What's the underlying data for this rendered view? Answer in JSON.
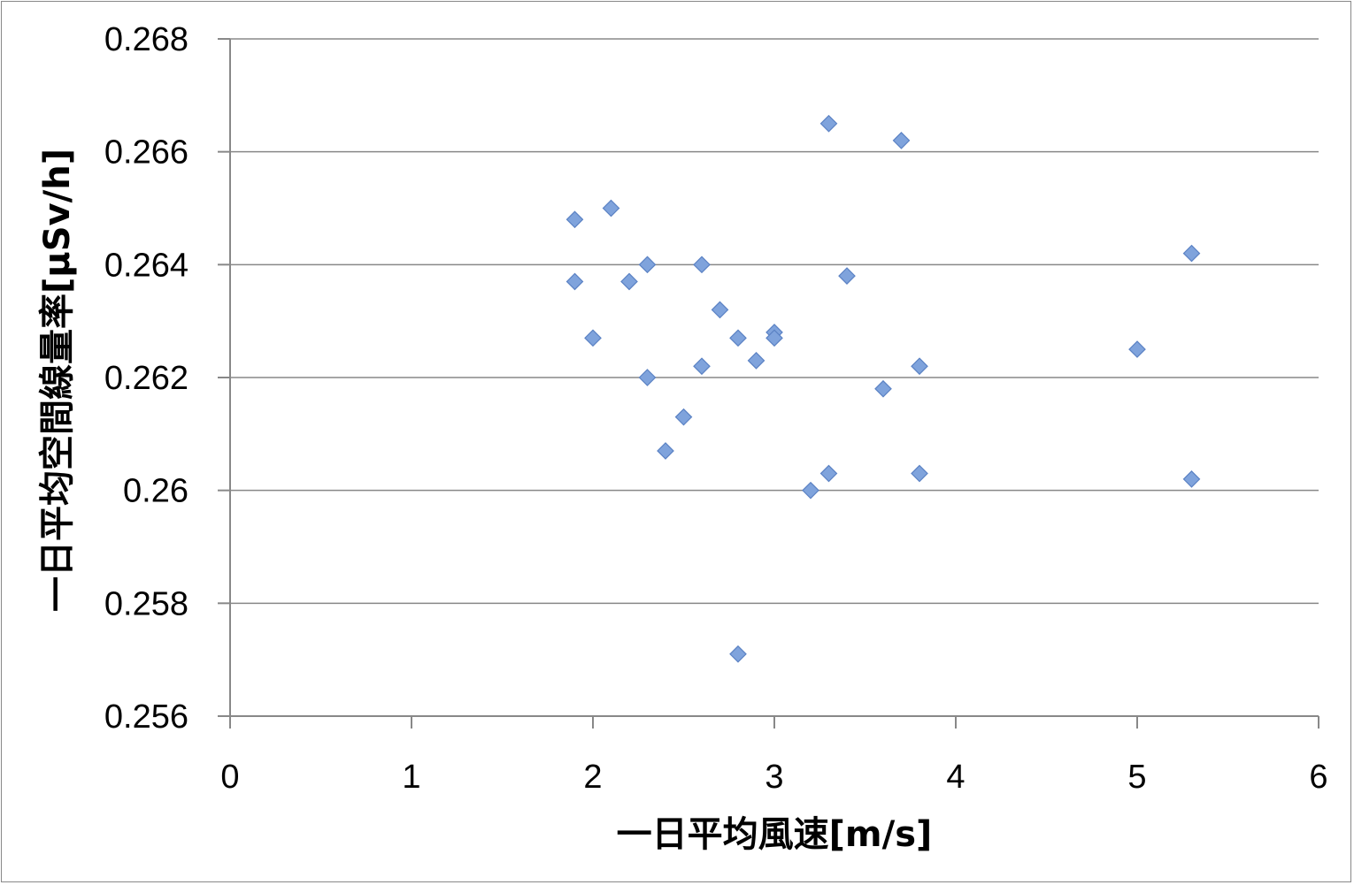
{
  "chart_data": {
    "type": "scatter",
    "xlabel": "一日平均風速[m/s]",
    "ylabel": "一日平均空間線量率[μSv/h]",
    "xlim": [
      0,
      6
    ],
    "ylim": [
      0.256,
      0.268
    ],
    "x_ticks": [
      "0",
      "1",
      "2",
      "3",
      "4",
      "5",
      "6"
    ],
    "y_ticks": [
      "0.256",
      "0.258",
      "0.26",
      "0.262",
      "0.264",
      "0.266",
      "0.268"
    ],
    "grid": "horizontal",
    "legend": "none",
    "marker": "diamond",
    "marker_color": "#7FA3DC",
    "points": [
      [
        1.9,
        0.2648
      ],
      [
        1.9,
        0.2637
      ],
      [
        2.0,
        0.2627
      ],
      [
        2.1,
        0.265
      ],
      [
        2.2,
        0.2637
      ],
      [
        2.3,
        0.264
      ],
      [
        2.3,
        0.262
      ],
      [
        2.4,
        0.2607
      ],
      [
        2.5,
        0.2613
      ],
      [
        2.6,
        0.264
      ],
      [
        2.6,
        0.2622
      ],
      [
        2.7,
        0.2632
      ],
      [
        2.8,
        0.2627
      ],
      [
        2.8,
        0.2571
      ],
      [
        2.9,
        0.2623
      ],
      [
        3.0,
        0.2628
      ],
      [
        3.0,
        0.2627
      ],
      [
        3.2,
        0.26
      ],
      [
        3.3,
        0.2665
      ],
      [
        3.3,
        0.2603
      ],
      [
        3.4,
        0.2638
      ],
      [
        3.6,
        0.2618
      ],
      [
        3.7,
        0.2662
      ],
      [
        3.8,
        0.2622
      ],
      [
        3.8,
        0.2603
      ],
      [
        5.0,
        0.2625
      ],
      [
        5.3,
        0.2642
      ],
      [
        5.3,
        0.2602
      ]
    ]
  }
}
